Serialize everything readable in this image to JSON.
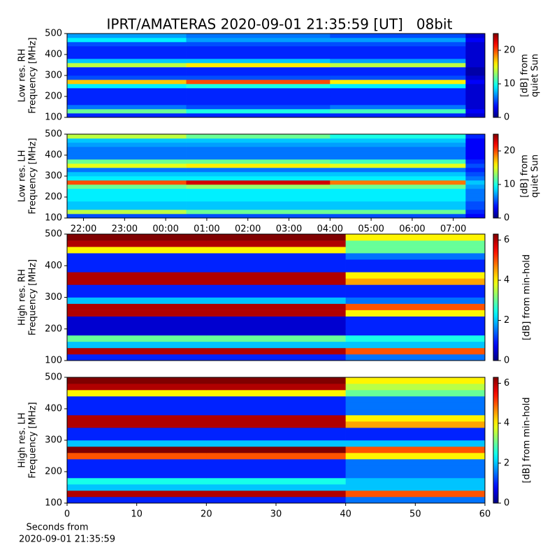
{
  "title": "IPRT/AMATERAS 2020-09-01 21:35:59 [UT]   08bit",
  "xlabel": [
    "Seconds from",
    "2020-09-01 21:35:59"
  ],
  "chart_data": [
    {
      "type": "heatmap",
      "ylabel": [
        "Low res. RH",
        "Frequency [MHz]"
      ],
      "colormap": "jet",
      "ylim": [
        100,
        500
      ],
      "yticks": [
        100,
        200,
        300,
        400,
        500
      ],
      "xlim": [
        21.6,
        31.77
      ],
      "xbins": [
        21.6,
        24.5,
        28,
        31.3,
        31.77
      ],
      "ybins": [
        100,
        120,
        140,
        160,
        180,
        200,
        220,
        240,
        260,
        280,
        300,
        320,
        340,
        360,
        380,
        400,
        420,
        440,
        460,
        480,
        500
      ],
      "z": [
        [
          4,
          4,
          4,
          2
        ],
        [
          12,
          10,
          11,
          3
        ],
        [
          6,
          5,
          6,
          2
        ],
        [
          4,
          4,
          4,
          2
        ],
        [
          4,
          4,
          4,
          2
        ],
        [
          4,
          4,
          4,
          2
        ],
        [
          4,
          4,
          4,
          2
        ],
        [
          9,
          10,
          9,
          2
        ],
        [
          17,
          20,
          16,
          3
        ],
        [
          5,
          5,
          5,
          2
        ],
        [
          4,
          4,
          4,
          1
        ],
        [
          4,
          4,
          4,
          1
        ],
        [
          14,
          16,
          14,
          2
        ],
        [
          8,
          8,
          7,
          2
        ],
        [
          4,
          4,
          4,
          2
        ],
        [
          4,
          4,
          4,
          2
        ],
        [
          4,
          4,
          4,
          2
        ],
        [
          5,
          5,
          5,
          2
        ],
        [
          9,
          7,
          7,
          3
        ],
        [
          7,
          6,
          5,
          2
        ]
      ],
      "zlim": [
        0,
        25
      ],
      "colorbar": {
        "label": [
          "[dB] from",
          "quiet Sun"
        ],
        "ticks": [
          0,
          10,
          20
        ]
      }
    },
    {
      "type": "heatmap",
      "ylabel": [
        "Low res. LH",
        "Frequency [MHz]"
      ],
      "colormap": "jet",
      "ylim": [
        100,
        500
      ],
      "yticks": [
        100,
        200,
        300,
        400,
        500
      ],
      "xlim": [
        21.6,
        31.77
      ],
      "xbins": [
        21.6,
        24.5,
        28,
        31.3,
        31.77
      ],
      "xticks": [
        {
          "value": 22,
          "label": "22:00"
        },
        {
          "value": 23,
          "label": "23:00"
        },
        {
          "value": 24,
          "label": "00:00"
        },
        {
          "value": 25,
          "label": "01:00"
        },
        {
          "value": 26,
          "label": "02:00"
        },
        {
          "value": 27,
          "label": "03:00"
        },
        {
          "value": 28,
          "label": "04:00"
        },
        {
          "value": 29,
          "label": "05:00"
        },
        {
          "value": 30,
          "label": "06:00"
        },
        {
          "value": 31,
          "label": "07:00"
        }
      ],
      "ybins": [
        100,
        120,
        140,
        160,
        180,
        200,
        220,
        240,
        260,
        280,
        300,
        320,
        340,
        360,
        380,
        400,
        420,
        440,
        460,
        480,
        500
      ],
      "z": [
        [
          5,
          5,
          5,
          3
        ],
        [
          14,
          12,
          12,
          4
        ],
        [
          8,
          8,
          8,
          5
        ],
        [
          8,
          8,
          8,
          5
        ],
        [
          9,
          9,
          9,
          6
        ],
        [
          9,
          9,
          9,
          6
        ],
        [
          9,
          9,
          9,
          6
        ],
        [
          12,
          13,
          12,
          7
        ],
        [
          20,
          23,
          19,
          8
        ],
        [
          9,
          9,
          9,
          6
        ],
        [
          8,
          8,
          8,
          5
        ],
        [
          6,
          6,
          6,
          4
        ],
        [
          15,
          16,
          15,
          5
        ],
        [
          12,
          12,
          11,
          4
        ],
        [
          6,
          6,
          6,
          3
        ],
        [
          6,
          6,
          6,
          3
        ],
        [
          6,
          6,
          6,
          3
        ],
        [
          7,
          7,
          7,
          3
        ],
        [
          8,
          8,
          8,
          3
        ],
        [
          14,
          12,
          10,
          4
        ]
      ],
      "zlim": [
        0,
        25
      ],
      "colorbar": {
        "label": [
          "[dB] from",
          "quiet Sun"
        ],
        "ticks": [
          0,
          10,
          20
        ]
      }
    },
    {
      "type": "heatmap",
      "ylabel": [
        "High res. RH",
        "Frequency [MHz]"
      ],
      "colormap": "jet",
      "ylim": [
        100,
        500
      ],
      "yticks": [
        100,
        200,
        300,
        400,
        500
      ],
      "xlim": [
        0,
        60
      ],
      "xbins": [
        0,
        20,
        40,
        60
      ],
      "ybins": [
        100,
        120,
        140,
        160,
        180,
        200,
        220,
        240,
        260,
        280,
        300,
        320,
        340,
        360,
        380,
        400,
        420,
        440,
        460,
        480,
        500
      ],
      "z": [
        [
          1,
          1,
          1.5
        ],
        [
          6,
          6,
          5
        ],
        [
          2,
          2,
          2
        ],
        [
          3,
          3,
          2.5
        ],
        [
          0.5,
          0.5,
          1
        ],
        [
          0.5,
          0.5,
          1
        ],
        [
          0.5,
          0.5,
          1
        ],
        [
          6,
          6,
          4
        ],
        [
          6,
          6,
          5
        ],
        [
          2,
          2,
          1.5
        ],
        [
          1,
          1,
          1
        ],
        [
          1,
          1,
          1
        ],
        [
          6,
          6,
          4.5
        ],
        [
          6,
          6,
          4
        ],
        [
          1,
          1,
          1
        ],
        [
          1,
          1,
          1
        ],
        [
          1,
          1,
          1.5
        ],
        [
          4,
          4,
          3
        ],
        [
          6,
          6,
          3
        ],
        [
          6.3,
          6.3,
          4
        ]
      ],
      "zlim": [
        0,
        6.3
      ],
      "colorbar": {
        "label": [
          "[dB] from min-hold"
        ],
        "ticks": [
          0,
          2,
          4,
          6
        ]
      }
    },
    {
      "type": "heatmap",
      "ylabel": [
        "High res. LH",
        "Frequency [MHz]"
      ],
      "colormap": "jet",
      "ylim": [
        100,
        500
      ],
      "yticks": [
        100,
        200,
        300,
        400,
        500
      ],
      "xlim": [
        0,
        60
      ],
      "xbins": [
        0,
        20,
        40,
        60
      ],
      "xticks": [
        0,
        10,
        20,
        30,
        40,
        50,
        60
      ],
      "ybins": [
        100,
        120,
        140,
        160,
        180,
        200,
        220,
        240,
        260,
        280,
        300,
        320,
        340,
        360,
        380,
        400,
        420,
        440,
        460,
        480,
        500
      ],
      "z": [
        [
          1,
          1,
          1.5
        ],
        [
          6,
          6,
          5
        ],
        [
          2,
          2,
          2
        ],
        [
          2.5,
          2.5,
          2
        ],
        [
          1,
          1,
          1.5
        ],
        [
          1,
          1,
          1.5
        ],
        [
          1,
          1,
          1.5
        ],
        [
          5,
          5,
          4
        ],
        [
          6.3,
          6.3,
          5
        ],
        [
          2,
          2,
          2
        ],
        [
          1,
          1,
          1
        ],
        [
          1,
          1,
          1
        ],
        [
          6,
          6,
          4.5
        ],
        [
          6,
          6,
          4
        ],
        [
          1,
          1,
          1.5
        ],
        [
          1,
          1,
          1.5
        ],
        [
          1,
          1,
          1.5
        ],
        [
          4,
          4,
          3
        ],
        [
          6,
          6,
          3.5
        ],
        [
          6.3,
          6.3,
          4
        ]
      ],
      "zlim": [
        0,
        6.3
      ],
      "colorbar": {
        "label": [
          "[dB] from min-hold"
        ],
        "ticks": [
          0,
          2,
          4,
          6
        ]
      }
    }
  ]
}
